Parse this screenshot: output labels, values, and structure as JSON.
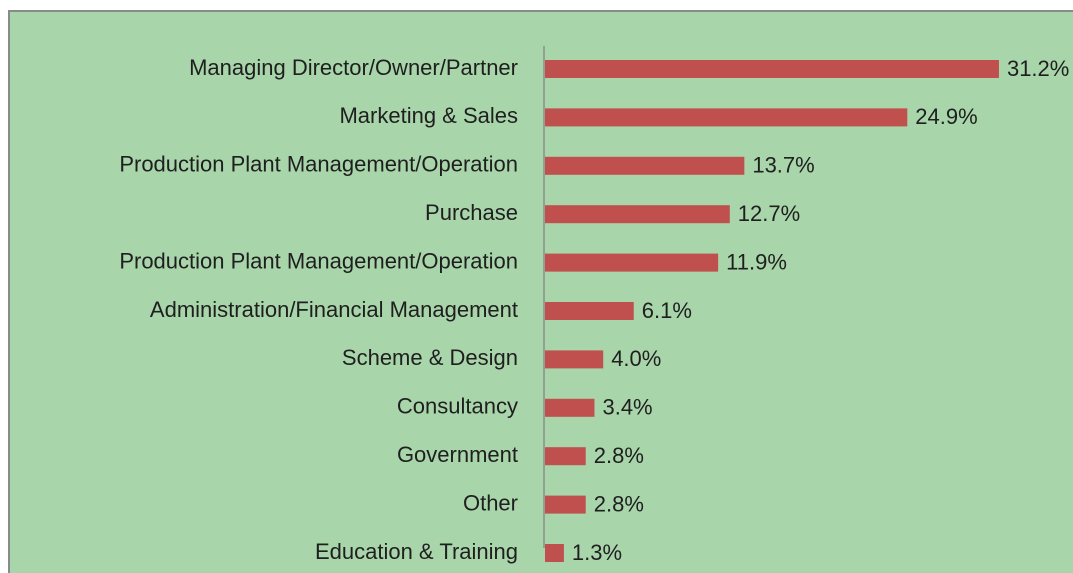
{
  "chart_data": {
    "type": "bar",
    "orientation": "horizontal",
    "categories": [
      "Managing Director/Owner/Partner",
      "Marketing & Sales",
      "Production Plant Management/Operation",
      "Purchase",
      "Production Plant Management/Operation",
      "Administration/Financial Management",
      "Scheme & Design",
      "Consultancy",
      "Government",
      "Other",
      "Education & Training"
    ],
    "values": [
      31.2,
      24.9,
      13.7,
      12.7,
      11.9,
      6.1,
      4.0,
      3.4,
      2.8,
      2.8,
      1.3
    ],
    "value_labels": [
      "31.2%",
      "24.9%",
      "13.7%",
      "12.7%",
      "11.9%",
      "6.1%",
      "4.0%",
      "3.4%",
      "2.8%",
      "2.8%",
      "1.3%"
    ],
    "color": "#c0504d",
    "background": "#a8d5aa"
  }
}
